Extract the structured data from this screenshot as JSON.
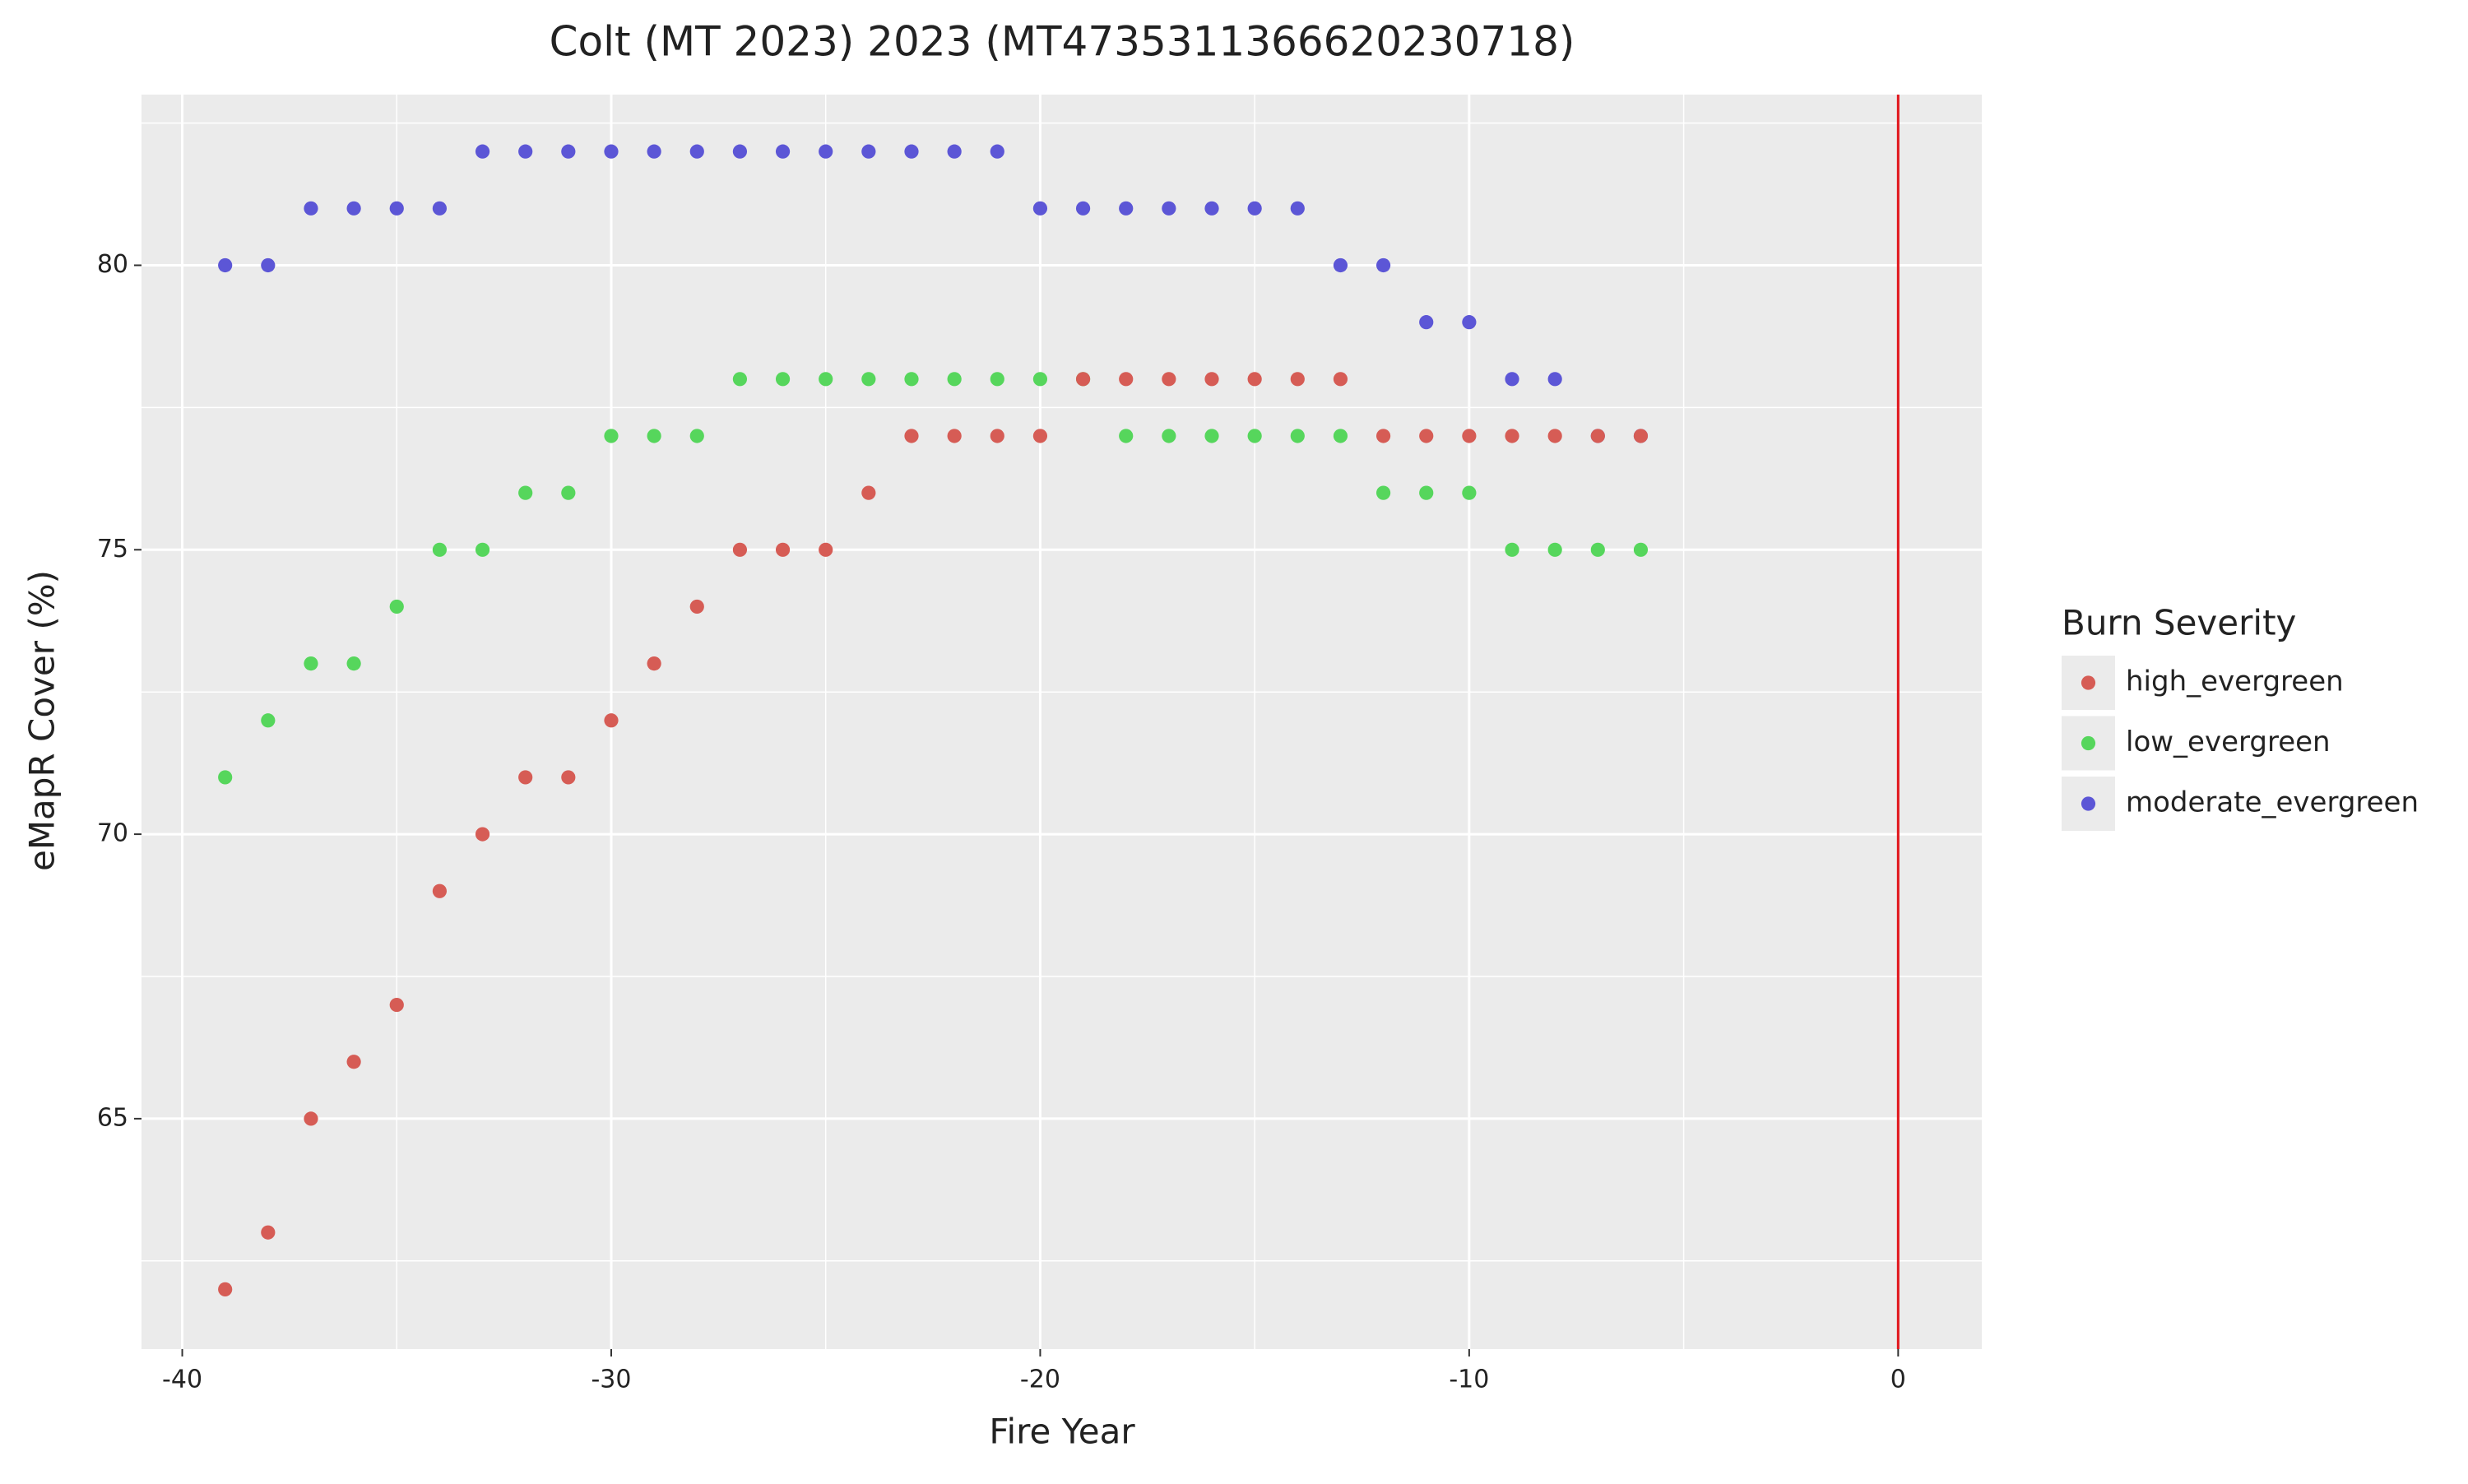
{
  "chart_data": {
    "type": "scatter",
    "title": "Colt (MT 2023) 2023 (MT4735311366620230718)",
    "xlabel": "Fire Year",
    "ylabel": "eMapR Cover (%)",
    "legend_title": "Burn Severity",
    "legend_position": "right",
    "grid": true,
    "xlim": [
      -40.95,
      1.95
    ],
    "ylim": [
      60.95,
      83.0
    ],
    "xticks": [
      -40,
      -30,
      -20,
      -10,
      0
    ],
    "yticks": [
      65,
      70,
      75,
      80
    ],
    "vline": {
      "x": 0,
      "color": "#e0151b"
    },
    "series": [
      {
        "name": "high_evergreen",
        "color": "#d65c55",
        "x": [
          -39,
          -38,
          -37,
          -36,
          -35,
          -34,
          -33,
          -32,
          -31,
          -30,
          -29,
          -28,
          -27,
          -26,
          -25,
          -24,
          -23,
          -22,
          -21,
          -20,
          -19,
          -18,
          -17,
          -16,
          -15,
          -14,
          -13,
          -12,
          -11,
          -10,
          -9,
          -8,
          -7,
          -6
        ],
        "values": [
          62,
          63,
          65,
          66,
          67,
          69,
          70,
          71,
          71,
          72,
          73,
          74,
          75,
          75,
          75,
          76,
          77,
          77,
          77,
          77,
          78,
          78,
          78,
          78,
          78,
          78,
          78,
          77,
          77,
          77,
          77,
          77,
          77,
          77
        ]
      },
      {
        "name": "low_evergreen",
        "color": "#56d65c",
        "x": [
          -39,
          -38,
          -37,
          -36,
          -35,
          -34,
          -33,
          -32,
          -31,
          -30,
          -29,
          -28,
          -27,
          -26,
          -25,
          -24,
          -23,
          -22,
          -21,
          -20,
          -19,
          -18,
          -17,
          -16,
          -15,
          -14,
          -13,
          -12,
          -11,
          -10,
          -9,
          -8,
          -7,
          -6
        ],
        "values": [
          71,
          72,
          73,
          73,
          74,
          75,
          75,
          76,
          76,
          77,
          77,
          77,
          78,
          78,
          78,
          78,
          78,
          78,
          78,
          78,
          78,
          77,
          77,
          77,
          77,
          77,
          77,
          76,
          76,
          76,
          75,
          75,
          75,
          75
        ]
      },
      {
        "name": "moderate_evergreen",
        "color": "#5c56d6",
        "x": [
          -39,
          -38,
          -37,
          -36,
          -35,
          -34,
          -33,
          -32,
          -31,
          -30,
          -29,
          -28,
          -27,
          -26,
          -25,
          -24,
          -23,
          -22,
          -21,
          -20,
          -19,
          -18,
          -17,
          -16,
          -15,
          -14,
          -13,
          -12,
          -11,
          -10,
          -9,
          -8,
          -7,
          -6
        ],
        "values": [
          80,
          80,
          81,
          81,
          81,
          81,
          82,
          82,
          82,
          82,
          82,
          82,
          82,
          82,
          82,
          82,
          82,
          82,
          82,
          81,
          81,
          81,
          81,
          81,
          81,
          81,
          80,
          80,
          79,
          79,
          78,
          78,
          77,
          77
        ]
      }
    ]
  }
}
